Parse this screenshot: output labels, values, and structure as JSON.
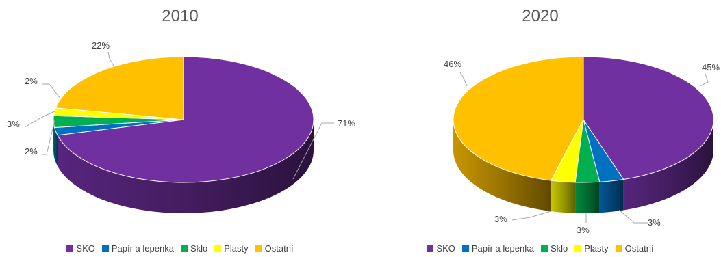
{
  "chart_data": [
    {
      "type": "pie",
      "title": "2010",
      "categories": [
        "SKO",
        "Papír a lepenka",
        "Sklo",
        "Plasty",
        "Ostatní"
      ],
      "values": [
        71,
        2,
        3,
        2,
        22
      ],
      "labels": [
        "71%",
        "2%",
        "3%",
        "2%",
        "22%"
      ],
      "colors": [
        "#7030A0",
        "#0070C0",
        "#00B050",
        "#FFFF00",
        "#FFC000"
      ],
      "legend": "bottom"
    },
    {
      "type": "pie",
      "title": "2020",
      "categories": [
        "SKO",
        "Papír a lepenka",
        "Sklo",
        "Plasty",
        "Ostatní"
      ],
      "values": [
        45,
        3,
        3,
        3,
        46
      ],
      "labels": [
        "45%",
        "3%",
        "3%",
        "3%",
        "46%"
      ],
      "colors": [
        "#7030A0",
        "#0070C0",
        "#00B050",
        "#FFFF00",
        "#FFC000"
      ],
      "legend": "bottom"
    }
  ]
}
